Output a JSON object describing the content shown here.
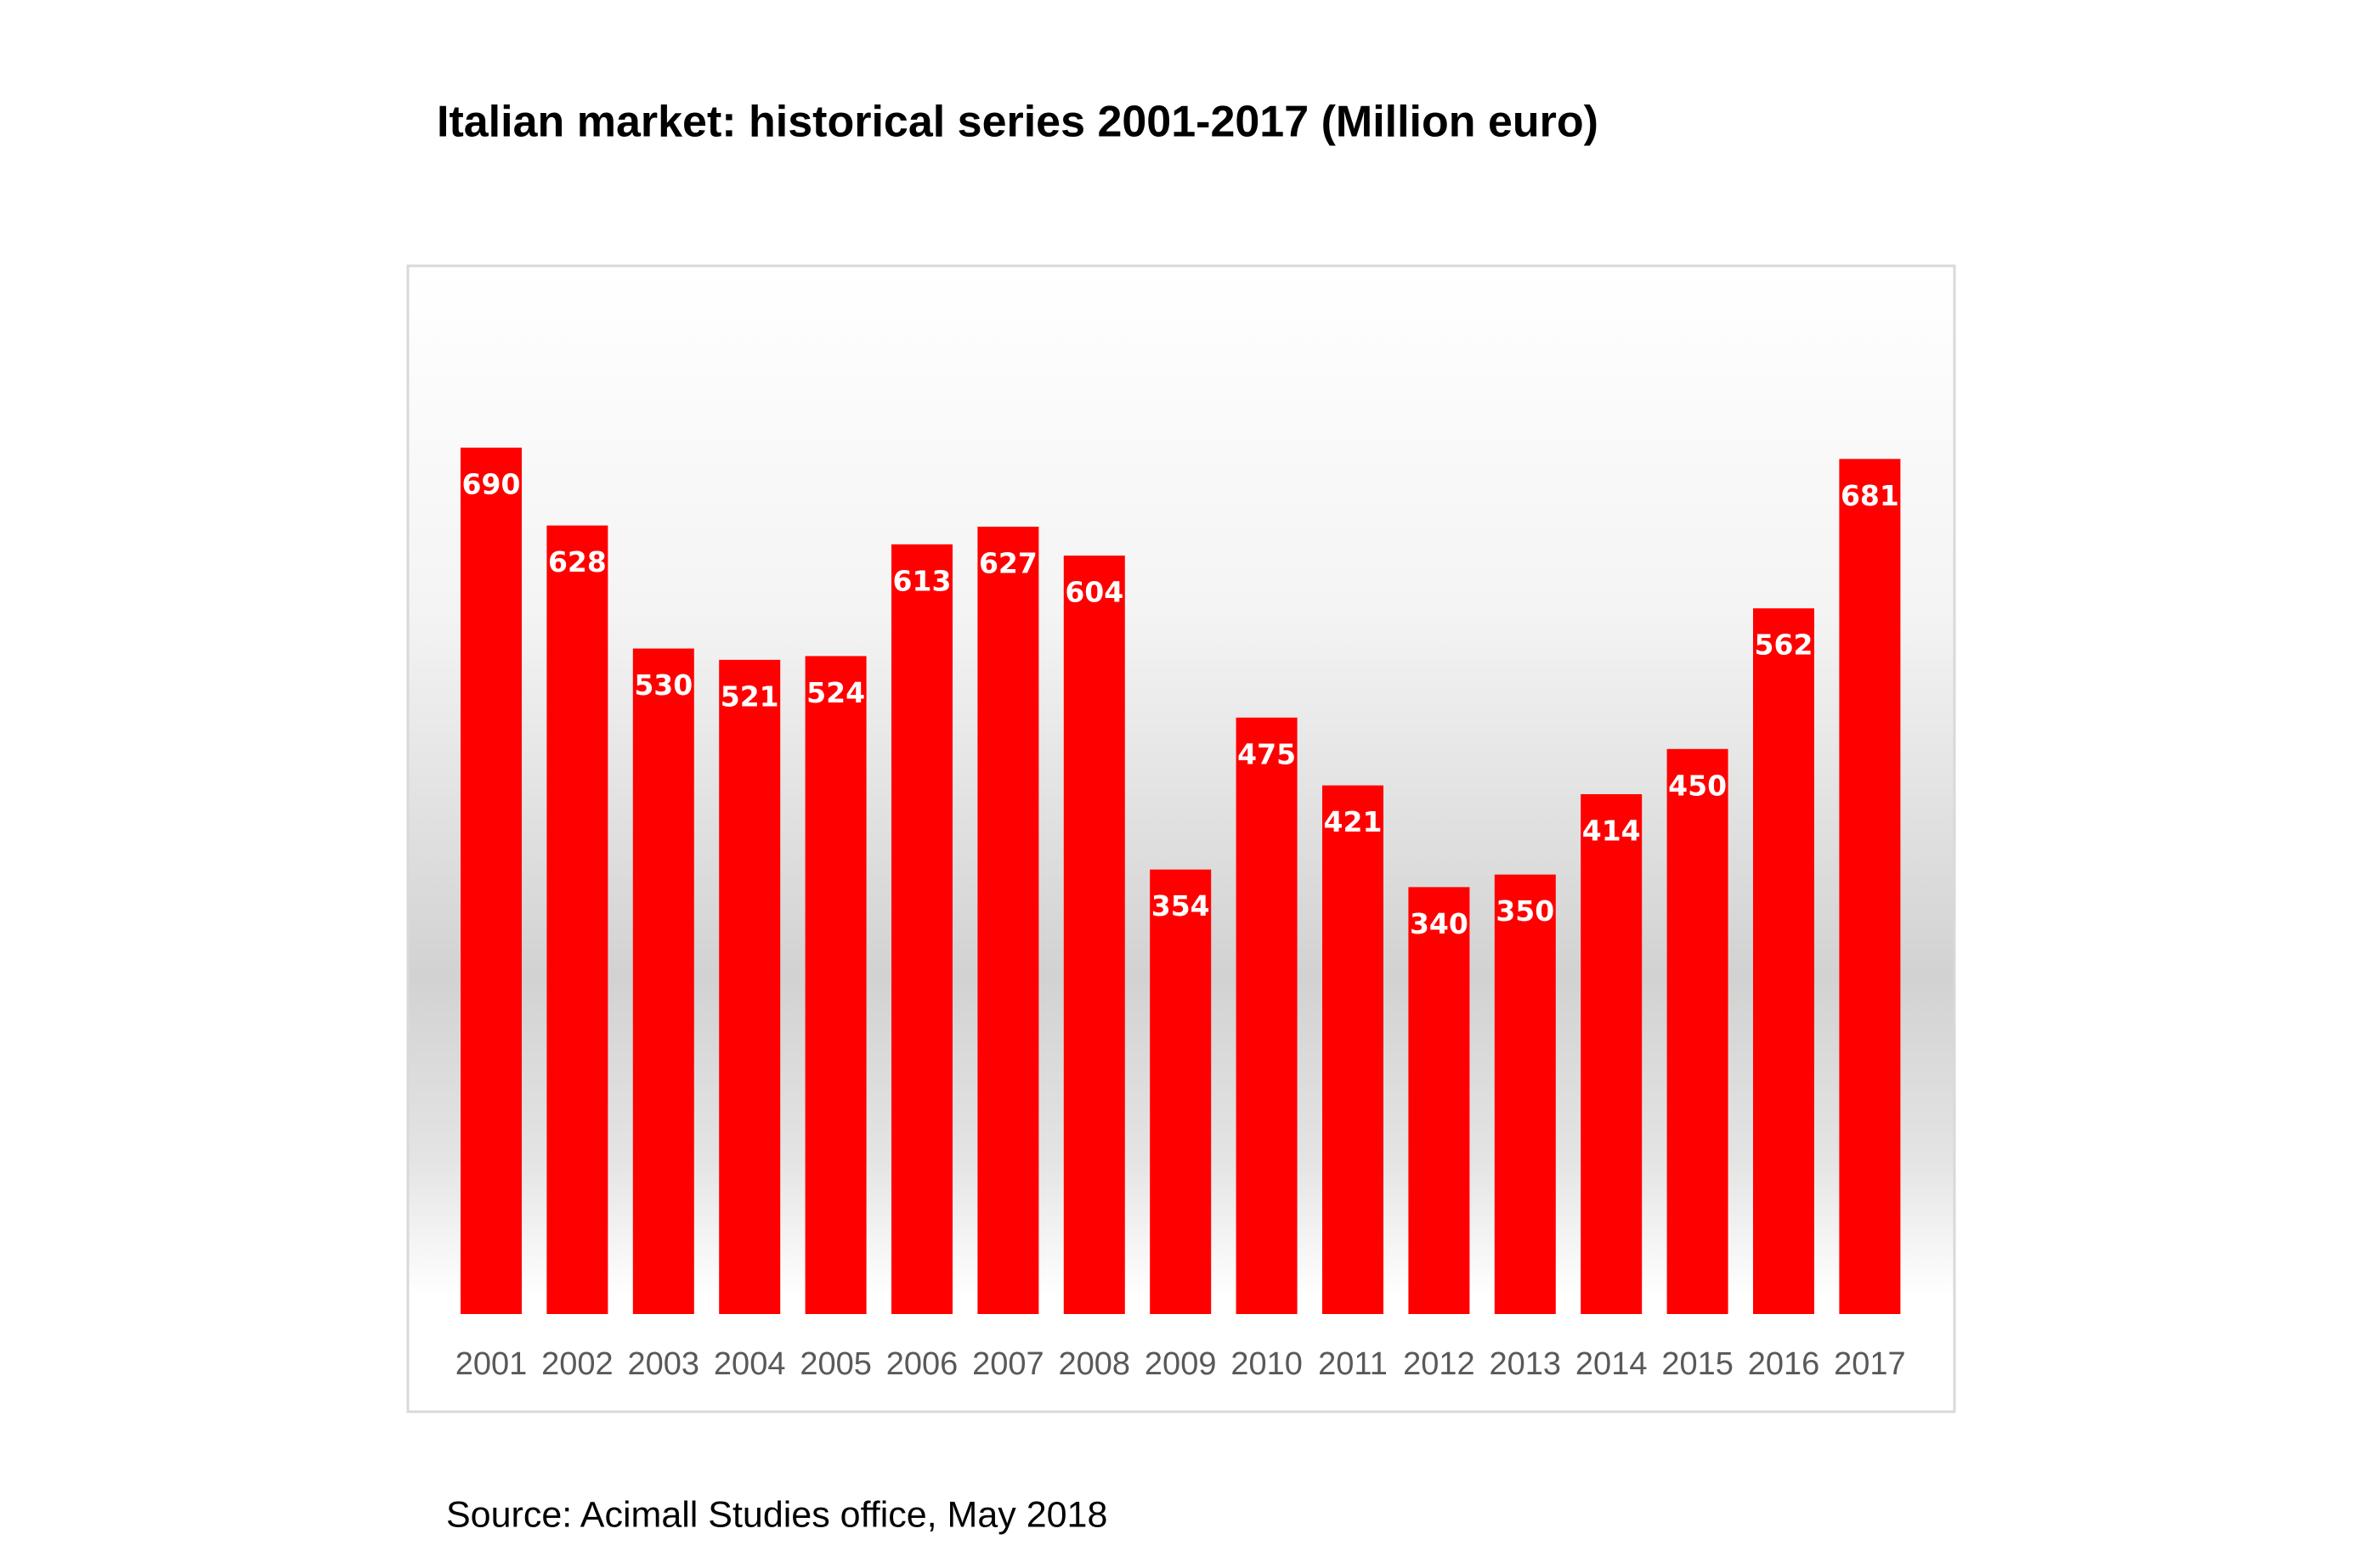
{
  "chart_data": {
    "type": "bar",
    "title": "Italian market: historical series 2001-2017 (Million euro)",
    "source": "Source: Acimall Studies office, May 2018",
    "categories": [
      "2001",
      "2002",
      "2003",
      "2004",
      "2005",
      "2006",
      "2007",
      "2008",
      "2009",
      "2010",
      "2011",
      "2012",
      "2013",
      "2014",
      "2015",
      "2016",
      "2017"
    ],
    "values": [
      690,
      628,
      530,
      521,
      524,
      613,
      627,
      604,
      354,
      475,
      421,
      340,
      350,
      414,
      450,
      562,
      681
    ],
    "color": "#ff0000"
  }
}
